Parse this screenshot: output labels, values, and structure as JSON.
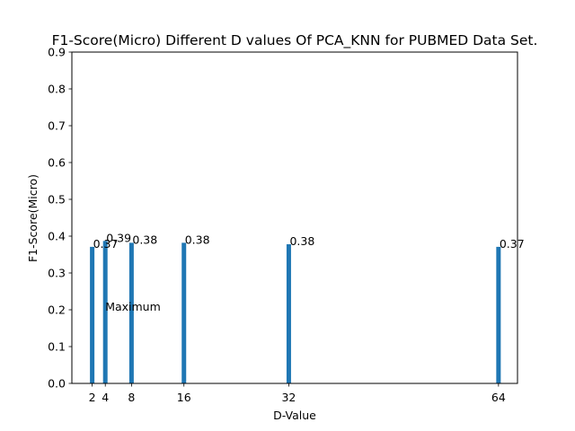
{
  "chart_data": {
    "type": "bar",
    "title": "F1-Score(Micro) Different D values Of PCA_KNN for PUBMED Data Set.",
    "xlabel": "D-Value",
    "ylabel": "F1-Score(Micro)",
    "x": [
      2,
      4,
      8,
      16,
      32,
      64
    ],
    "x_tick_labels": [
      "2",
      "4",
      "8",
      "16",
      "32",
      "64"
    ],
    "values": [
      0.37,
      0.39,
      0.38,
      0.38,
      0.38,
      0.37
    ],
    "raw_values": [
      0.371,
      0.387,
      0.382,
      0.382,
      0.378,
      0.371
    ],
    "data_labels": [
      "0.37",
      "0.39",
      "0.38",
      "0.38",
      "0.38",
      "0.37"
    ],
    "xlim": [
      -1.1,
      66.9
    ],
    "ylim": [
      0,
      0.9
    ],
    "y_ticks": [
      0.0,
      0.1,
      0.2,
      0.3,
      0.4,
      0.5,
      0.6,
      0.7,
      0.8,
      0.9
    ],
    "y_tick_labels": [
      "0.0",
      "0.1",
      "0.2",
      "0.3",
      "0.4",
      "0.5",
      "0.6",
      "0.7",
      "0.8",
      "0.9"
    ],
    "annotation": {
      "text": "Maximum",
      "x": 4,
      "y": 0.2
    },
    "bar_color": "#1f77b4",
    "grid": false,
    "legend": "none"
  }
}
